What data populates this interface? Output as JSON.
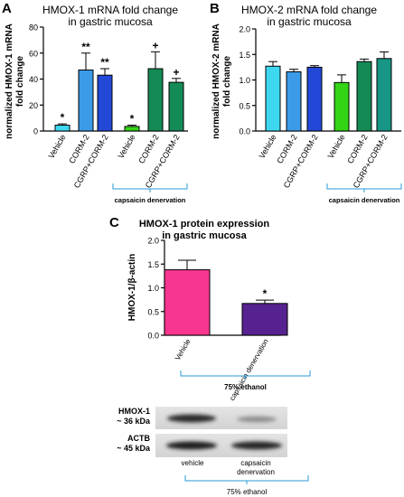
{
  "colors": {
    "cyan": "#3dd8f0",
    "blue": "#3c9be8",
    "darkblue": "#2348d8",
    "green": "#33d416",
    "darkgreen": "#148a56",
    "teal": "#179585",
    "pink": "#f7368f",
    "purple": "#55228f",
    "bracket": "#2a9ad8"
  },
  "chart_data": [
    {
      "type": "bar",
      "panel_letter": "A",
      "title_lines": [
        "HMOX-1 mRNA fold change",
        "in gastric mucosa"
      ],
      "ylabel_lines": [
        "normalized HMOX-1 mRNA",
        "fold change"
      ],
      "ylim": [
        0,
        80
      ],
      "yticks": [
        "0",
        "20",
        "40",
        "60",
        "80"
      ],
      "categories": [
        "Vehicle",
        "CORM-2",
        "CGRP+CORM-2",
        "Vehicle",
        "CORM-2",
        "CGRP+CORM-2"
      ],
      "values": [
        4.5,
        47,
        43,
        3.5,
        48,
        37.5
      ],
      "errors": [
        1,
        13,
        5,
        1,
        13,
        3
      ],
      "sig": [
        "*",
        "**",
        "**",
        "*",
        "+",
        "+"
      ],
      "group_label": "capsaicin denervation"
    },
    {
      "type": "bar",
      "panel_letter": "B",
      "title_lines": [
        "HMOX-2 mRNA fold change",
        "in gastric mucosa"
      ],
      "ylabel_lines": [
        "normalized HMOX-2 mRNA",
        "fold change"
      ],
      "ylim": [
        0,
        2.0
      ],
      "yticks": [
        "0.0",
        "0.5",
        "1.0",
        "1.5",
        "2.0"
      ],
      "categories": [
        "Vehicle",
        "CORM-2",
        "CGRP+CORM-2",
        "Vehicle",
        "CORM-2",
        "CGRP+CORM-2"
      ],
      "values": [
        1.27,
        1.16,
        1.25,
        0.95,
        1.36,
        1.42
      ],
      "errors": [
        0.09,
        0.05,
        0.03,
        0.15,
        0.05,
        0.13
      ],
      "group_label": "capsaicin denervation"
    },
    {
      "type": "bar",
      "panel_letter": "C",
      "title_lines": [
        "HMOX-1 protein expression",
        "in gastric mucosa"
      ],
      "ylabel_lines": [
        "HMOX-1/β-actin"
      ],
      "ylim": [
        0,
        2.0
      ],
      "yticks": [
        "0.0",
        "0.5",
        "1.0",
        "1.5",
        "2.0"
      ],
      "categories": [
        "Vehicle",
        "capsaicin denervation"
      ],
      "values": [
        1.38,
        0.67
      ],
      "errors": [
        0.2,
        0.07
      ],
      "sig": [
        "",
        "*"
      ],
      "group_label": "75% ethanol"
    }
  ],
  "blot": {
    "rows": [
      {
        "line1": "HMOX-1",
        "line2": "~ 36 kDa"
      },
      {
        "line1": "ACTB",
        "line2": "~ 45 kDa"
      }
    ],
    "lane_labels": [
      "vehicle",
      "capsaicin\ndenervation"
    ],
    "group_label": "75% ethanol"
  }
}
